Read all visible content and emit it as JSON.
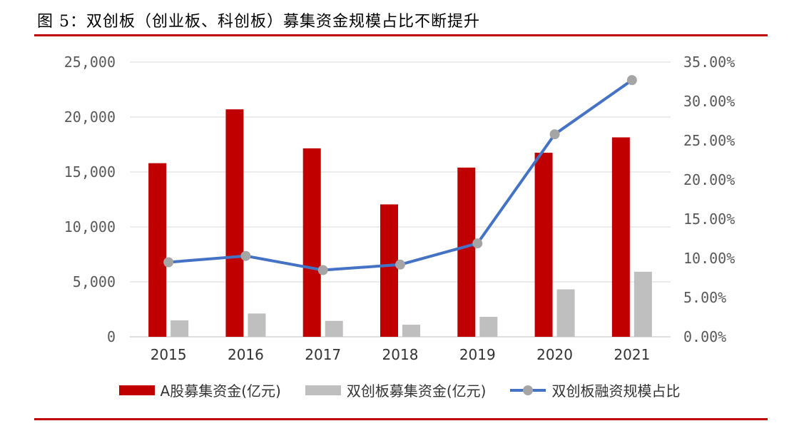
{
  "title": "图 5：双创板（创业板、科创板）募集资金规模占比不断提升",
  "colors": {
    "rule": "#c00000",
    "bar_a": "#c00000",
    "bar_dual": "#bfbfbf",
    "line": "#4472c4",
    "marker": "#a5a5a5",
    "grid": "#d9d9d9"
  },
  "chart_data": {
    "type": "bar",
    "categories": [
      "2015",
      "2016",
      "2017",
      "2018",
      "2019",
      "2020",
      "2021"
    ],
    "series": [
      {
        "name": "A股募集资金(亿元)",
        "type": "bar",
        "axis": "left",
        "values": [
          15800,
          20700,
          17150,
          12050,
          15400,
          16750,
          18150
        ]
      },
      {
        "name": "双创板募集资金(亿元)",
        "type": "bar",
        "axis": "left",
        "values": [
          1500,
          2120,
          1450,
          1100,
          1820,
          4320,
          5920
        ]
      },
      {
        "name": "双创板融资规模占比",
        "type": "line",
        "axis": "right",
        "values": [
          9.5,
          10.3,
          8.5,
          9.2,
          11.9,
          25.8,
          32.7
        ]
      }
    ],
    "left_axis": {
      "min": 0,
      "max": 25000,
      "ticks": [
        "0",
        "5,000",
        "10,000",
        "15,000",
        "20,000",
        "25,000"
      ]
    },
    "right_axis": {
      "min": 0,
      "max": 35,
      "ticks": [
        "0.00%",
        "5.00%",
        "10.00%",
        "15.00%",
        "20.00%",
        "25.00%",
        "30.00%",
        "35.00%"
      ]
    },
    "grid": true,
    "legend_position": "bottom"
  }
}
